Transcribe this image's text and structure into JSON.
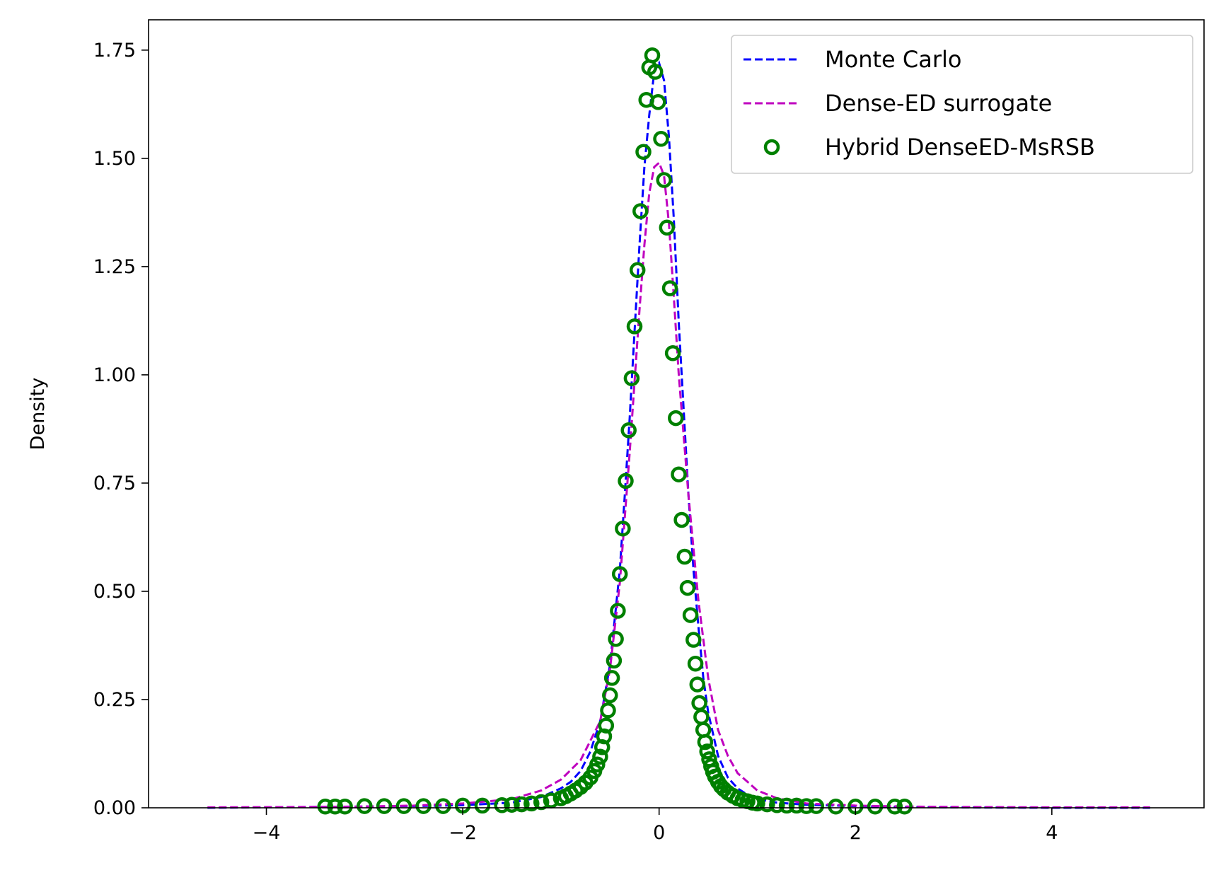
{
  "chart_data": {
    "type": "line",
    "title": "",
    "xlabel": "",
    "ylabel": "Density",
    "xlim": [
      -5.2,
      5.55
    ],
    "ylim": [
      0,
      1.82
    ],
    "xticks": [
      -4,
      -2,
      0,
      2,
      4
    ],
    "xtick_labels": [
      "−4",
      "−2",
      "0",
      "2",
      "4"
    ],
    "yticks": [
      0,
      0.25,
      0.5,
      0.75,
      1.0,
      1.25,
      1.5,
      1.75
    ],
    "ytick_labels": [
      "0.00",
      "0.25",
      "0.50",
      "0.75",
      "1.00",
      "1.25",
      "1.50",
      "1.75"
    ],
    "grid": false,
    "legend_position": "top-right",
    "series": [
      {
        "name": "Monte Carlo",
        "style": "dashed-line",
        "color": "#0000ff",
        "x": [
          -4.6,
          -3.5,
          -3.0,
          -2.5,
          -2.0,
          -1.5,
          -1.2,
          -1.0,
          -0.9,
          -0.8,
          -0.7,
          -0.6,
          -0.5,
          -0.4,
          -0.35,
          -0.3,
          -0.25,
          -0.2,
          -0.15,
          -0.1,
          -0.05,
          0.0,
          0.05,
          0.1,
          0.15,
          0.2,
          0.25,
          0.3,
          0.35,
          0.4,
          0.45,
          0.5,
          0.6,
          0.7,
          0.8,
          0.9,
          1.0,
          1.2,
          1.5,
          2.0,
          2.5,
          3.0,
          4.0,
          5.0
        ],
        "y": [
          0.0,
          0.002,
          0.003,
          0.004,
          0.006,
          0.012,
          0.025,
          0.045,
          0.06,
          0.085,
          0.13,
          0.2,
          0.33,
          0.55,
          0.72,
          0.9,
          1.1,
          1.3,
          1.48,
          1.6,
          1.7,
          1.72,
          1.68,
          1.55,
          1.36,
          1.12,
          0.92,
          0.72,
          0.55,
          0.42,
          0.3,
          0.22,
          0.12,
          0.07,
          0.045,
          0.03,
          0.02,
          0.012,
          0.007,
          0.004,
          0.002,
          0.001,
          0.0,
          0.0
        ]
      },
      {
        "name": "Dense-ED surrogate",
        "style": "dashed-line",
        "color": "#bf00bf",
        "x": [
          -4.6,
          -3.5,
          -3.0,
          -2.5,
          -2.0,
          -1.5,
          -1.2,
          -1.0,
          -0.8,
          -0.6,
          -0.5,
          -0.4,
          -0.3,
          -0.2,
          -0.15,
          -0.1,
          -0.05,
          0.0,
          0.05,
          0.1,
          0.15,
          0.2,
          0.3,
          0.4,
          0.5,
          0.6,
          0.7,
          0.8,
          1.0,
          1.2,
          1.5,
          2.0,
          2.5,
          3.0,
          4.0,
          5.0
        ],
        "y": [
          0.001,
          0.002,
          0.003,
          0.005,
          0.01,
          0.02,
          0.04,
          0.065,
          0.11,
          0.2,
          0.32,
          0.52,
          0.82,
          1.15,
          1.3,
          1.42,
          1.48,
          1.49,
          1.46,
          1.35,
          1.18,
          1.0,
          0.72,
          0.48,
          0.3,
          0.18,
          0.12,
          0.08,
          0.04,
          0.022,
          0.01,
          0.005,
          0.003,
          0.002,
          0.001,
          0.001
        ]
      },
      {
        "name": "Hybrid DenseED-MsRSB",
        "style": "open-circles",
        "color": "#008000",
        "x": [
          -3.4,
          -3.3,
          -3.2,
          -3.0,
          -2.8,
          -2.6,
          -2.4,
          -2.2,
          -2.0,
          -1.8,
          -1.6,
          -1.5,
          -1.4,
          -1.3,
          -1.2,
          -1.1,
          -1.0,
          -0.95,
          -0.9,
          -0.85,
          -0.8,
          -0.75,
          -0.7,
          -0.66,
          -0.63,
          -0.6,
          -0.58,
          -0.56,
          -0.54,
          -0.52,
          -0.5,
          -0.48,
          -0.46,
          -0.44,
          -0.42,
          -0.4,
          -0.37,
          -0.34,
          -0.31,
          -0.28,
          -0.25,
          -0.22,
          -0.19,
          -0.16,
          -0.13,
          -0.1,
          -0.07,
          -0.04,
          -0.01,
          0.02,
          0.05,
          0.08,
          0.11,
          0.14,
          0.17,
          0.2,
          0.23,
          0.26,
          0.29,
          0.32,
          0.35,
          0.37,
          0.39,
          0.41,
          0.43,
          0.45,
          0.47,
          0.49,
          0.51,
          0.53,
          0.55,
          0.57,
          0.6,
          0.63,
          0.66,
          0.7,
          0.75,
          0.8,
          0.85,
          0.9,
          0.95,
          1.0,
          1.1,
          1.2,
          1.3,
          1.4,
          1.5,
          1.6,
          1.8,
          2.0,
          2.2,
          2.4,
          2.5
        ],
        "y": [
          0.003,
          0.003,
          0.003,
          0.004,
          0.004,
          0.004,
          0.004,
          0.004,
          0.005,
          0.005,
          0.006,
          0.007,
          0.008,
          0.01,
          0.013,
          0.017,
          0.022,
          0.027,
          0.033,
          0.04,
          0.048,
          0.058,
          0.07,
          0.085,
          0.1,
          0.118,
          0.14,
          0.165,
          0.19,
          0.225,
          0.26,
          0.3,
          0.34,
          0.39,
          0.455,
          0.54,
          0.645,
          0.755,
          0.872,
          0.992,
          1.112,
          1.242,
          1.378,
          1.515,
          1.635,
          1.71,
          1.738,
          1.7,
          1.63,
          1.545,
          1.45,
          1.34,
          1.2,
          1.05,
          0.9,
          0.77,
          0.665,
          0.58,
          0.508,
          0.445,
          0.388,
          0.333,
          0.285,
          0.242,
          0.21,
          0.18,
          0.152,
          0.13,
          0.112,
          0.096,
          0.083,
          0.072,
          0.06,
          0.05,
          0.043,
          0.035,
          0.028,
          0.022,
          0.018,
          0.015,
          0.012,
          0.01,
          0.008,
          0.006,
          0.005,
          0.005,
          0.004,
          0.004,
          0.003,
          0.003,
          0.003,
          0.003,
          0.003
        ]
      }
    ]
  }
}
